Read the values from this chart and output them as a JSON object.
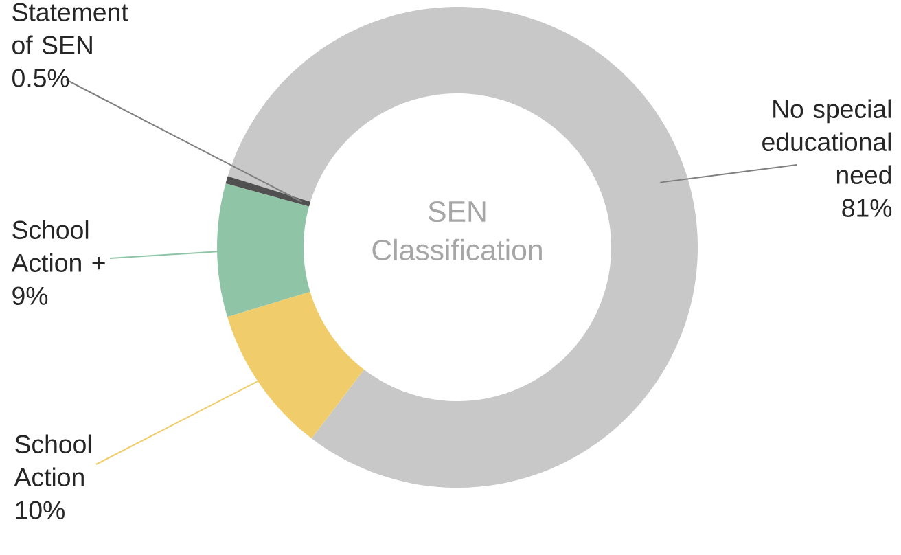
{
  "chart_data": {
    "type": "donut",
    "title": "SEN Classification",
    "categories": [
      "No special educational need",
      "School Action",
      "School Action +",
      "Statement of SEN"
    ],
    "values": [
      81,
      10,
      9,
      0.5
    ],
    "value_labels": [
      "81%",
      "10%",
      "9%",
      "0.5%"
    ],
    "colors": [
      "#c8c8c8",
      "#f0cd6a",
      "#8fc5a6",
      "#505050"
    ]
  }
}
